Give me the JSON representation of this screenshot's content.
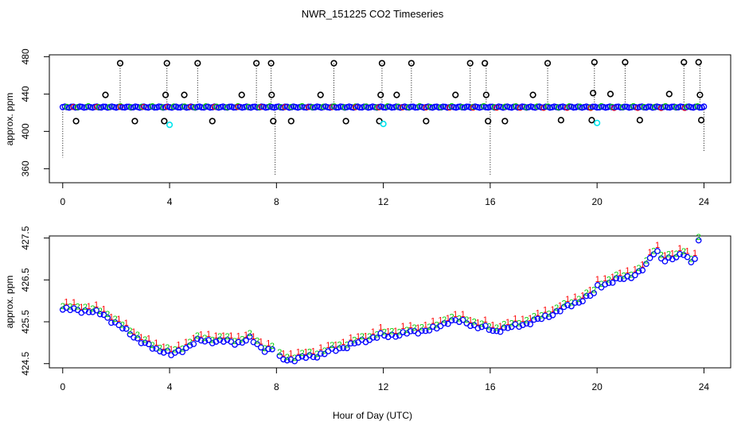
{
  "chart_data": [
    {
      "type": "scatter",
      "title": "NWR_151225  CO2 Timeseries",
      "xlabel": "",
      "ylabel": "approx. ppm",
      "xlim": [
        -0.5,
        25
      ],
      "ylim": [
        345,
        482
      ],
      "xticks": [
        0,
        4,
        8,
        12,
        16,
        20,
        24
      ],
      "xtick_labels": [
        "0",
        "4",
        "8",
        "12",
        "16",
        "20",
        "24"
      ],
      "yticks": [
        360,
        400,
        440,
        480
      ],
      "ytick_labels": [
        "360",
        "400",
        "440",
        "480"
      ],
      "baseline": 426,
      "colors": {
        "black": "#000000",
        "blue": "#0000ff",
        "cyan": "#00e5ee",
        "green": "#00cc00",
        "red": "#ff0000"
      },
      "series": [
        {
          "name": "black high spikes",
          "color": "#000000",
          "x": [
            1.6,
            2.15,
            3.85,
            3.9,
            4.55,
            5.05,
            6.7,
            7.25,
            7.8,
            7.82,
            9.65,
            10.15,
            11.9,
            11.95,
            12.5,
            13.05,
            14.7,
            15.25,
            15.8,
            15.85,
            17.6,
            18.15,
            19.85,
            19.9,
            20.5,
            21.05,
            22.7,
            23.25,
            23.8,
            23.85
          ],
          "y": [
            439,
            473,
            439,
            473,
            439,
            473,
            439,
            473,
            473,
            439,
            439,
            473,
            439,
            473,
            439,
            473,
            439,
            473,
            473,
            439,
            439,
            473,
            441,
            474,
            440,
            474,
            440,
            474,
            474,
            439
          ]
        },
        {
          "name": "black low points",
          "color": "#000000",
          "x": [
            0.5,
            2.7,
            3.8,
            5.6,
            7.88,
            8.55,
            10.6,
            11.85,
            13.6,
            15.92,
            16.55,
            18.65,
            19.8,
            21.6,
            23.9
          ],
          "y": [
            411,
            411,
            411,
            411,
            411,
            411,
            411,
            411,
            411,
            411,
            411,
            412,
            412,
            412,
            412
          ]
        },
        {
          "name": "cyan points",
          "color": "#00e5ee",
          "x": [
            4.0,
            12.0,
            20.0
          ],
          "y": [
            407,
            408,
            409
          ]
        },
        {
          "name": "dotted spike lines",
          "color": "#000000",
          "segments": [
            {
              "x": 0.0,
              "y1": 426,
              "y2": 372
            },
            {
              "x": 2.15,
              "y1": 426,
              "y2": 473
            },
            {
              "x": 3.9,
              "y1": 426,
              "y2": 473
            },
            {
              "x": 5.05,
              "y1": 426,
              "y2": 473
            },
            {
              "x": 7.25,
              "y1": 426,
              "y2": 473
            },
            {
              "x": 7.8,
              "y1": 426,
              "y2": 473
            },
            {
              "x": 7.95,
              "y1": 426,
              "y2": 352
            },
            {
              "x": 10.15,
              "y1": 426,
              "y2": 473
            },
            {
              "x": 11.95,
              "y1": 426,
              "y2": 473
            },
            {
              "x": 13.05,
              "y1": 426,
              "y2": 473
            },
            {
              "x": 15.25,
              "y1": 426,
              "y2": 473
            },
            {
              "x": 15.85,
              "y1": 426,
              "y2": 473
            },
            {
              "x": 16.0,
              "y1": 426,
              "y2": 352
            },
            {
              "x": 18.15,
              "y1": 426,
              "y2": 473
            },
            {
              "x": 19.9,
              "y1": 426,
              "y2": 474
            },
            {
              "x": 21.05,
              "y1": 426,
              "y2": 474
            },
            {
              "x": 23.25,
              "y1": 426,
              "y2": 474
            },
            {
              "x": 23.85,
              "y1": 426,
              "y2": 474
            },
            {
              "x": 24.0,
              "y1": 426,
              "y2": 378
            }
          ]
        }
      ]
    },
    {
      "type": "scatter",
      "title": "",
      "xlabel": "Hour of Day (UTC)",
      "ylabel": "approx. ppm",
      "xlim": [
        -0.5,
        25
      ],
      "ylim": [
        424.4,
        427.55
      ],
      "xticks": [
        0,
        4,
        8,
        12,
        16,
        20,
        24
      ],
      "xtick_labels": [
        "0",
        "4",
        "8",
        "12",
        "16",
        "20",
        "24"
      ],
      "yticks": [
        424.5,
        425.5,
        426.5,
        427.5
      ],
      "ytick_labels": [
        "424.5",
        "425.5",
        "426.5",
        "427.5"
      ],
      "trace_x": [
        0,
        0.5,
        1,
        1.5,
        2,
        2.5,
        3,
        3.5,
        3.9,
        4.0,
        4.4,
        5,
        5.5,
        6,
        6.5,
        7,
        7.5,
        7.85,
        8.0,
        8.5,
        9,
        9.5,
        10,
        10.5,
        11,
        11.5,
        11.95,
        12.0,
        12.5,
        13,
        13.5,
        14,
        14.5,
        15,
        15.5,
        15.95,
        16.0,
        16.5,
        17,
        17.5,
        18,
        18.5,
        19,
        19.5,
        19.95,
        20.0,
        20.5,
        21,
        21.5,
        21.8,
        22.0,
        22.2,
        22.5,
        23,
        23.2,
        23.6,
        23.8
      ],
      "trace_y": [
        425.85,
        425.85,
        425.8,
        425.75,
        425.5,
        425.3,
        425.05,
        424.9,
        424.85,
        424.75,
        424.85,
        425.1,
        425.1,
        425.1,
        425.05,
        425.15,
        424.9,
        424.9,
        424.7,
        424.65,
        424.7,
        424.75,
        424.85,
        424.95,
        425.05,
        425.15,
        425.25,
        425.2,
        425.25,
        425.3,
        425.35,
        425.4,
        425.6,
        425.55,
        425.45,
        425.4,
        425.3,
        425.4,
        425.45,
        425.55,
        425.65,
        425.8,
        425.95,
        426.1,
        426.25,
        426.4,
        426.5,
        426.6,
        426.7,
        426.85,
        427.1,
        427.3,
        427.0,
        427.1,
        427.25,
        426.9,
        427.45
      ],
      "gaps": [
        [
          3.95,
          4.0
        ],
        [
          7.9,
          8.0
        ],
        [
          11.96,
          12.0
        ],
        [
          15.96,
          16.0
        ],
        [
          19.96,
          20.0
        ]
      ],
      "series": [
        {
          "name": "blue circles",
          "color": "#0000ff",
          "offset": -0.06,
          "glyph": "o"
        },
        {
          "name": "green 2",
          "color": "#00cc00",
          "offset": 0.03,
          "glyph": "2"
        },
        {
          "name": "red 1",
          "color": "#ff0000",
          "offset": 0.09,
          "glyph": "1"
        }
      ]
    }
  ]
}
